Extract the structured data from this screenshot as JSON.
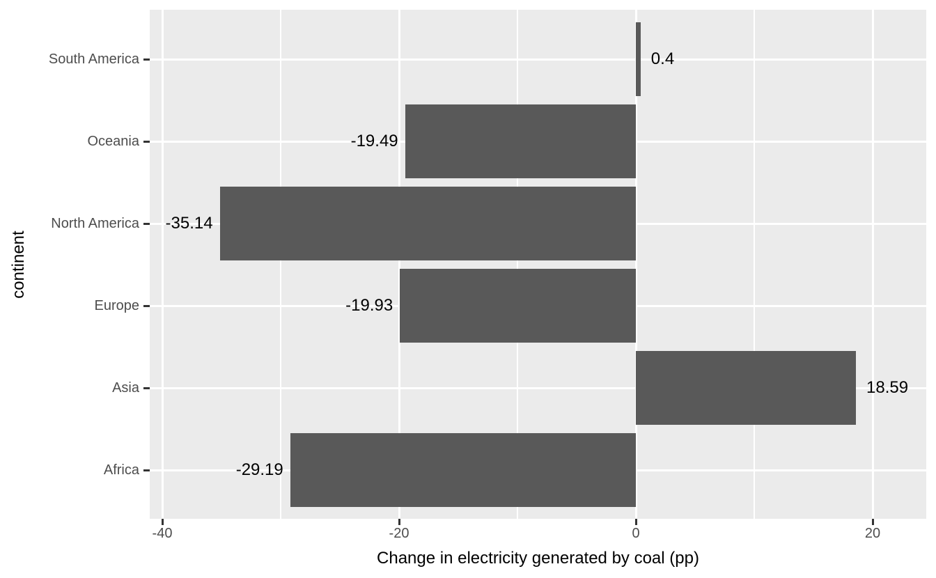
{
  "chart_data": {
    "type": "bar",
    "orientation": "horizontal",
    "xlabel": "Change in electricity generated by coal (pp)",
    "ylabel": "continent",
    "categories": [
      "South America",
      "Oceania",
      "North America",
      "Europe",
      "Asia",
      "Africa"
    ],
    "values": [
      0.4,
      -19.49,
      -35.14,
      -19.93,
      18.59,
      -29.19
    ],
    "value_labels": [
      "0.4",
      "-19.49",
      "-35.14",
      "-19.93",
      "18.59",
      "-29.19"
    ],
    "x_major_ticks": [
      "-40",
      "-20",
      "0",
      "20"
    ],
    "x_major_tick_values": [
      -40,
      -20,
      0,
      20
    ],
    "x_minor_tick_values": [
      -30,
      -10,
      10
    ],
    "xlim": [
      -41,
      24.5
    ],
    "grid": true,
    "legend_position": "none",
    "colors": {
      "bar": "#595959",
      "panel_background": "#EBEBEB",
      "gridline": "#FFFFFF",
      "tick_mark": "#333333",
      "axis_text": "#4D4D4D",
      "axis_title": "#000000",
      "value_label": "#000000",
      "figure_background": "#FFFFFF"
    }
  }
}
